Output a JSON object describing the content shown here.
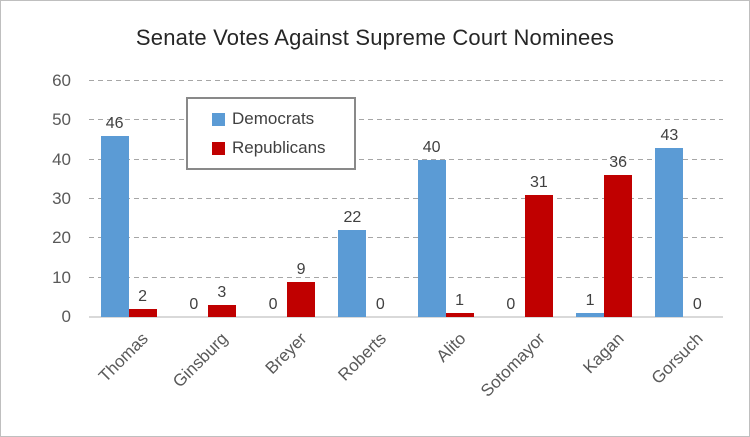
{
  "chart_data": {
    "type": "bar",
    "title": "Senate Votes Against Supreme Court Nominees",
    "categories": [
      "Thomas",
      "Ginsburg",
      "Breyer",
      "Roberts",
      "Alito",
      "Sotomayor",
      "Kagan",
      "Gorsuch"
    ],
    "series": [
      {
        "name": "Democrats",
        "color": "#5B9BD5",
        "values": [
          46,
          0,
          0,
          22,
          40,
          0,
          1,
          43
        ]
      },
      {
        "name": "Republicans",
        "color": "#C00000",
        "values": [
          2,
          3,
          9,
          0,
          1,
          31,
          36,
          0
        ]
      }
    ],
    "xlabel": "",
    "ylabel": "",
    "ylim": [
      0,
      60
    ],
    "yticks": [
      0,
      10,
      20,
      30,
      40,
      50,
      60
    ],
    "grid": "dashed horizontal gridlines",
    "gridline_color": "#A6A6A6",
    "axis_line_color": "#D9D9D9",
    "legend_position": "inside top-left",
    "data_labels": true,
    "category_label_rotation_deg": 45
  }
}
